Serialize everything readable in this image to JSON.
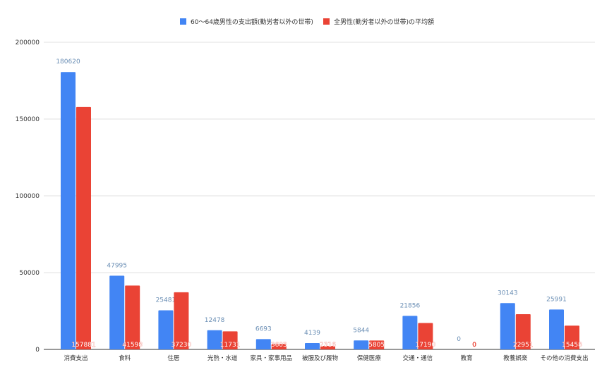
{
  "chart_data": {
    "type": "bar",
    "title": "",
    "xlabel": "",
    "ylabel": "",
    "ylim": [
      0,
      200000
    ],
    "yticks": [
      0,
      50000,
      100000,
      150000,
      200000
    ],
    "grid": true,
    "legend_position": "top",
    "categories": [
      "消費支出",
      "食料",
      "住居",
      "光熱・水道",
      "家具・家事用品",
      "被服及び履物",
      "保健医療",
      "交通・通信",
      "教育",
      "教養娯楽",
      "その他の消費支出"
    ],
    "series": [
      {
        "name": "60〜64歳男性の支出額(勤労者以外の世帯)",
        "color": "#4285f4",
        "values": [
          180620,
          47995,
          25481,
          12478,
          6693,
          4139,
          5844,
          21856,
          0,
          30143,
          25991
        ]
      },
      {
        "name": "全男性(勤労者以外の世帯)の平均額",
        "color": "#ea4335",
        "values": [
          157881,
          41598,
          37230,
          11731,
          3603,
          2316,
          5805,
          17190,
          0,
          22951,
          15458
        ]
      }
    ]
  },
  "colors": {
    "label_blue": "#6b8fb5",
    "label_red": "#ffffff",
    "grid": "#e0e0e0",
    "axis": "#333333",
    "text": "#333333"
  }
}
